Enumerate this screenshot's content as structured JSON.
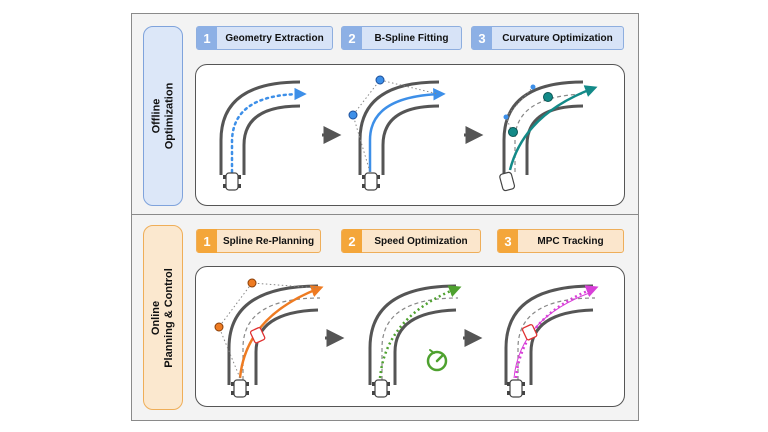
{
  "offline": {
    "section_label_line1": "Offline",
    "section_label_line2": "Optimization",
    "steps": [
      {
        "num": "1",
        "label": "Geometry Extraction"
      },
      {
        "num": "2",
        "label": "B-Spline Fitting"
      },
      {
        "num": "3",
        "label": "Curvature Optimization"
      }
    ]
  },
  "online": {
    "section_label_line1": "Online",
    "section_label_line2": "Planning & Control",
    "steps": [
      {
        "num": "1",
        "label": "Spline Re-Planning"
      },
      {
        "num": "2",
        "label": "Speed Optimization"
      },
      {
        "num": "3",
        "label": "MPC Tracking"
      }
    ]
  },
  "colors": {
    "offline_accent": "#8db0e5",
    "online_accent": "#f4a63a",
    "blue_path": "#3d8fe8",
    "teal_path": "#138a88",
    "orange_path": "#ee7b22",
    "green_path": "#4ea12f",
    "magenta_path": "#d83fd8",
    "track": "#555555"
  }
}
